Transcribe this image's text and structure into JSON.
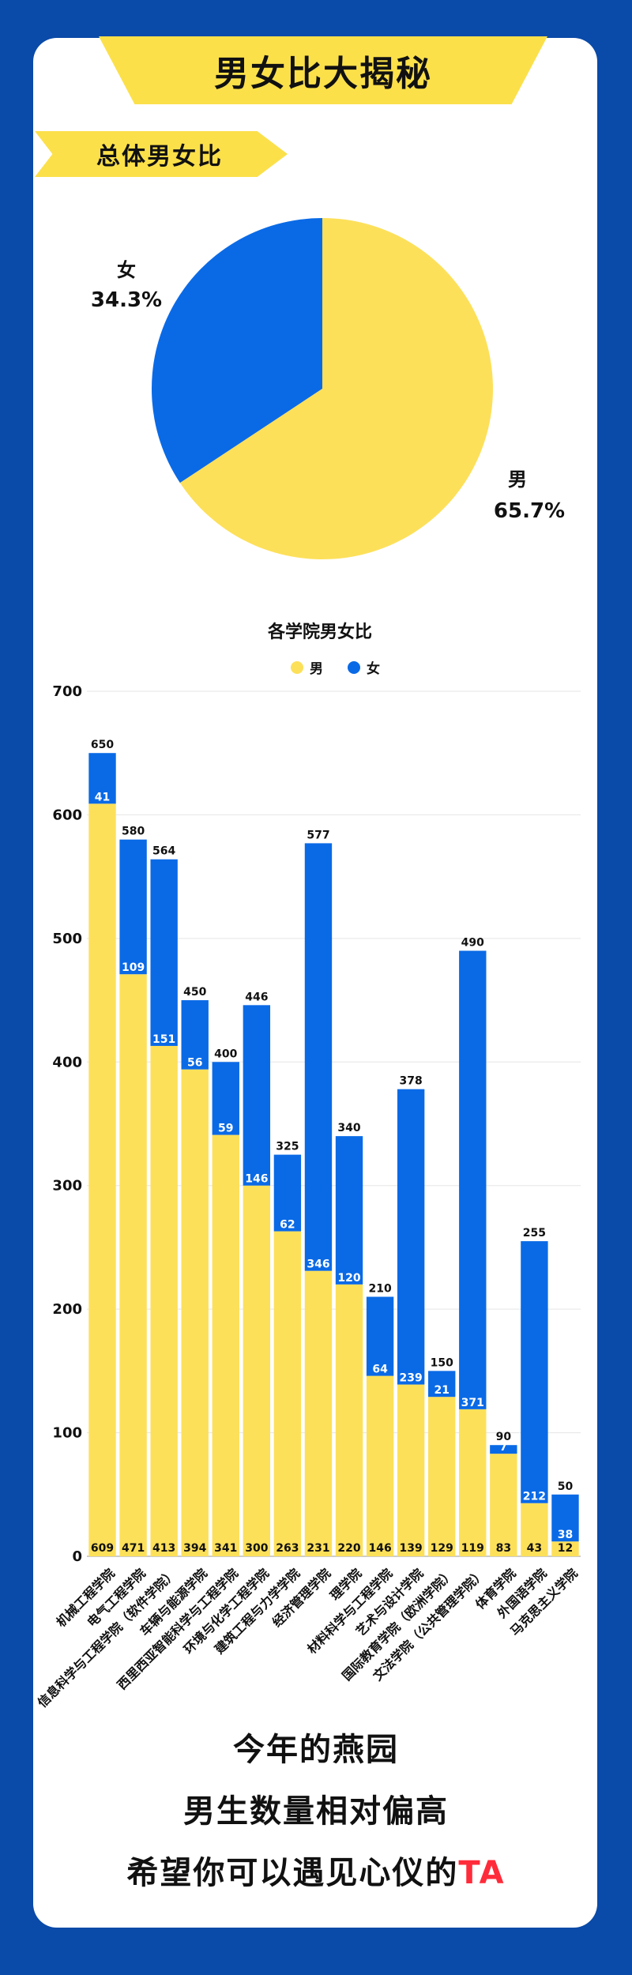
{
  "title": "男女比大揭秘",
  "section_title": "总体男女比",
  "colors": {
    "male": "#fde05a",
    "female": "#0a6ae6",
    "accent": "#ff2b3a",
    "frame": "#0a4aa8"
  },
  "chart_data": [
    {
      "type": "pie",
      "title": "总体男女比",
      "slices": [
        {
          "label": "男",
          "value": 65.7,
          "text": "65.7%"
        },
        {
          "label": "女",
          "value": 34.3,
          "text": "34.3%"
        }
      ]
    },
    {
      "type": "bar",
      "stacked": true,
      "title": "各学院男女比",
      "legend": [
        "男",
        "女"
      ],
      "ylim": [
        0,
        700
      ],
      "yticks": [
        0,
        100,
        200,
        300,
        400,
        500,
        600,
        700
      ],
      "categories": [
        "机械工程学院",
        "电气工程学院",
        "信息科学与工程学院（软件学院）",
        "车辆与能源学院",
        "西里西亚智能科学与工程学院",
        "环境与化学工程学院",
        "建筑工程与力学学院",
        "经济管理学院",
        "理学院",
        "材料科学与工程学院",
        "艺术与设计学院",
        "国际教育学院（欧洲学院）",
        "文法学院（公共管理学院）",
        "体育学院",
        "外国语学院",
        "马克思主义学院"
      ],
      "series": [
        {
          "name": "男",
          "values": [
            609,
            471,
            413,
            394,
            341,
            300,
            263,
            231,
            220,
            146,
            139,
            129,
            119,
            83,
            43,
            12
          ]
        },
        {
          "name": "女",
          "values": [
            41,
            109,
            151,
            56,
            59,
            146,
            62,
            346,
            120,
            64,
            239,
            21,
            371,
            7,
            212,
            38
          ]
        }
      ],
      "totals": [
        650,
        580,
        564,
        450,
        400,
        446,
        325,
        577,
        340,
        210,
        378,
        150,
        490,
        90,
        255,
        50
      ]
    }
  ],
  "footer": {
    "line1": "今年的燕园",
    "line2": "男生数量相对偏高",
    "line3_prefix": "希望你可以遇见心仪的",
    "line3_accent": "TA"
  }
}
